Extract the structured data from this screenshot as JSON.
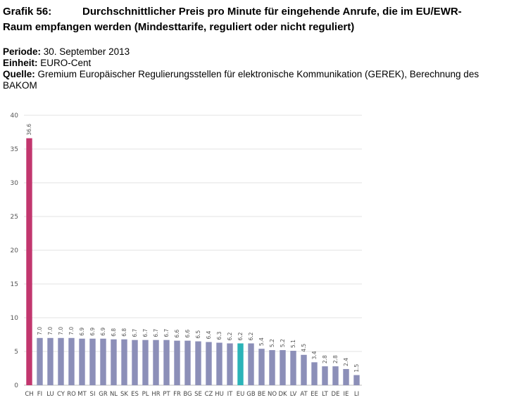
{
  "header": {
    "number": "Grafik 56:",
    "title_line1": "Durchschnittlicher Preis pro Minute für eingehende Anrufe, die im EU/EWR-",
    "title_line2": "Raum empfangen werden (Mindesttarife, reguliert oder nicht reguliert)",
    "periode_label": "Periode:",
    "periode_value": "30. September 2013",
    "einheit_label": "Einheit:",
    "einheit_value": "EURO-Cent",
    "quelle_label": "Quelle:",
    "quelle_value": "Gremium Europäischer Regulierungsstellen für elektronische Kommunikation (GEREK), Berechnung des BAKOM"
  },
  "colors": {
    "default_bar": "#8c8fb8",
    "highlight_ch": "#c2366e",
    "highlight_eu": "#2bb3b8",
    "grid": "#e3e3e3"
  },
  "chart_data": {
    "type": "bar",
    "categories": [
      "CH",
      "FI",
      "LU",
      "CY",
      "RO",
      "MT",
      "SI",
      "GR",
      "NL",
      "SK",
      "ES",
      "PL",
      "HR",
      "PT",
      "FR",
      "BG",
      "SE",
      "CZ",
      "HU",
      "IT",
      "EU",
      "GB",
      "BE",
      "NO",
      "DK",
      "LV",
      "AT",
      "EE",
      "LT",
      "DE",
      "IE",
      "LI"
    ],
    "values": [
      36.6,
      7.0,
      7.0,
      7.0,
      7.0,
      6.9,
      6.9,
      6.9,
      6.8,
      6.8,
      6.7,
      6.7,
      6.7,
      6.7,
      6.6,
      6.6,
      6.5,
      6.4,
      6.3,
      6.2,
      6.2,
      6.2,
      5.4,
      5.2,
      5.2,
      5.1,
      4.5,
      3.4,
      2.8,
      2.8,
      2.4,
      1.5
    ],
    "value_labels": [
      "36.6",
      "7.0",
      "7.0",
      "7.0",
      "7.0",
      "6.9",
      "6.9",
      "6.9",
      "6.8",
      "6.8",
      "6.7",
      "6.7",
      "6.7",
      "6.7",
      "6.6",
      "6.6",
      "6.5",
      "6.4",
      "6.3",
      "6.2",
      "6.2",
      "6.2",
      "5.4",
      "5.2",
      "5.2",
      "5.1",
      "4.5",
      "3.4",
      "2.8",
      "2.8",
      "2.4",
      "1.5"
    ],
    "yticks": [
      0,
      5,
      10,
      15,
      20,
      25,
      30,
      35,
      40
    ],
    "ylim": [
      0,
      40
    ],
    "grid": true,
    "legend": "none",
    "highlight": {
      "CH": "highlight_ch",
      "EU": "highlight_eu"
    }
  }
}
